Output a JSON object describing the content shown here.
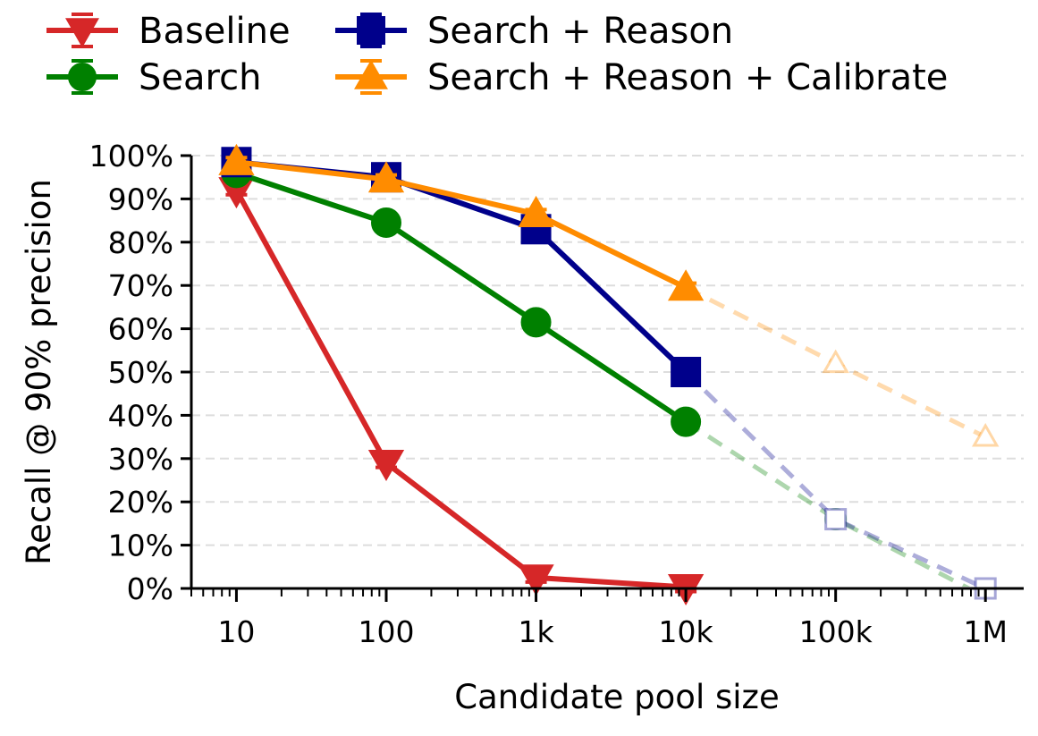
{
  "chart_data": {
    "type": "line",
    "xlabel": "Candidate pool size",
    "ylabel": "Recall @ 90% precision",
    "x_scale": "log",
    "xlim": [
      5,
      1800000
    ],
    "ylim": [
      0,
      100
    ],
    "x_ticks": [
      {
        "value": 10,
        "label": "10"
      },
      {
        "value": 100,
        "label": "100"
      },
      {
        "value": 1000,
        "label": "1k"
      },
      {
        "value": 10000,
        "label": "10k"
      },
      {
        "value": 100000,
        "label": "100k"
      },
      {
        "value": 1000000,
        "label": "1M"
      }
    ],
    "y_ticks": [
      {
        "value": 0,
        "label": "0%"
      },
      {
        "value": 10,
        "label": "10%"
      },
      {
        "value": 20,
        "label": "20%"
      },
      {
        "value": 30,
        "label": "30%"
      },
      {
        "value": 40,
        "label": "40%"
      },
      {
        "value": 50,
        "label": "50%"
      },
      {
        "value": 60,
        "label": "60%"
      },
      {
        "value": 70,
        "label": "70%"
      },
      {
        "value": 80,
        "label": "80%"
      },
      {
        "value": 90,
        "label": "90%"
      },
      {
        "value": 100,
        "label": "100%"
      }
    ],
    "grid": "horizontal dashed",
    "legend_position": "top",
    "series": [
      {
        "name": "Baseline",
        "color": "#d62728",
        "marker": "triangle-down",
        "points": [
          [
            10,
            92
          ],
          [
            100,
            29
          ],
          [
            1000,
            2.5
          ],
          [
            10000,
            0.3
          ]
        ],
        "extrapolated_points": []
      },
      {
        "name": "Search",
        "color": "#008000",
        "marker": "circle",
        "points": [
          [
            10,
            96
          ],
          [
            100,
            84.5
          ],
          [
            1000,
            61.5
          ],
          [
            10000,
            38.5
          ]
        ],
        "extrapolated_points": [
          [
            10000,
            38.5
          ],
          [
            100000,
            16
          ],
          [
            1000000,
            -2
          ]
        ]
      },
      {
        "name": "Search + Reason",
        "color": "#00008b",
        "marker": "square",
        "points": [
          [
            10,
            98.5
          ],
          [
            100,
            95
          ],
          [
            1000,
            83
          ],
          [
            10000,
            50
          ]
        ],
        "extrapolated_points": [
          [
            10000,
            50
          ],
          [
            100000,
            16
          ],
          [
            1000000,
            0
          ]
        ]
      },
      {
        "name": "Search + Reason + Calibrate",
        "color": "#ff8c00",
        "marker": "triangle-up",
        "points": [
          [
            10,
            98.5
          ],
          [
            100,
            94.5
          ],
          [
            1000,
            86.5
          ],
          [
            10000,
            69.5
          ]
        ],
        "extrapolated_points": [
          [
            10000,
            69.5
          ],
          [
            100000,
            52
          ],
          [
            1000000,
            35
          ]
        ]
      }
    ]
  }
}
